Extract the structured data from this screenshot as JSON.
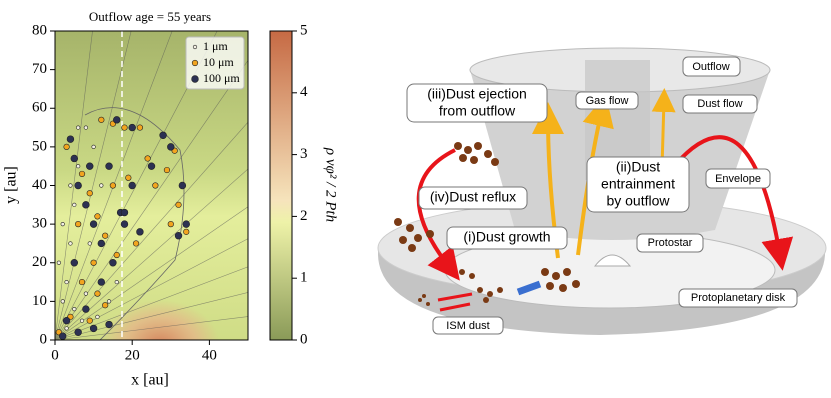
{
  "chart_data": {
    "type": "scatter",
    "title": "Outflow age = 55 years",
    "x_label": "x [au]",
    "y_label": "y [au]",
    "xlim": [
      0,
      50
    ],
    "ylim": [
      0,
      80
    ],
    "xticks": [
      0,
      20,
      40
    ],
    "yticks": [
      0,
      10,
      20,
      30,
      40,
      50,
      60,
      70,
      80
    ],
    "legend": "upper right",
    "series": [
      {
        "name": "1 μm",
        "color": "#f4f1e4",
        "x": [
          2,
          3,
          4,
          5,
          6,
          8,
          10,
          12,
          3,
          5,
          8,
          1,
          2,
          7,
          11,
          14,
          16,
          9,
          4,
          6
        ],
        "values": [
          10,
          15,
          25,
          35,
          45,
          55,
          50,
          40,
          3,
          8,
          12,
          20,
          30,
          5,
          6,
          10,
          15,
          25,
          40,
          55
        ]
      },
      {
        "name": "10 μm",
        "color": "#f2a51f",
        "x": [
          3,
          7,
          9,
          11,
          13,
          16,
          19,
          24,
          31,
          32,
          34,
          12,
          15,
          22,
          4,
          9,
          13,
          1,
          7,
          10,
          26,
          30,
          21,
          6,
          15,
          29,
          18,
          11
        ],
        "values": [
          50,
          43,
          38,
          32,
          27,
          22,
          42,
          47,
          49,
          35,
          28,
          57,
          56,
          55,
          6,
          5,
          9,
          2,
          15,
          20,
          40,
          30,
          25,
          30,
          40,
          44,
          55,
          12
        ]
      },
      {
        "name": "100 μm",
        "color": "#2c3152",
        "x": [
          4,
          5,
          6,
          8,
          10,
          12,
          15,
          17,
          18,
          20,
          25,
          30,
          33,
          34,
          32,
          3,
          6,
          10,
          14,
          2,
          8,
          12,
          20,
          16,
          28,
          5,
          9,
          18,
          14,
          22
        ],
        "values": [
          52,
          47,
          40,
          35,
          30,
          25,
          20,
          33,
          33,
          40,
          45,
          50,
          40,
          30,
          27,
          5,
          2,
          3,
          4,
          1,
          8,
          15,
          55,
          57,
          53,
          20,
          45,
          30,
          45,
          28
        ]
      }
    ],
    "colorbar_label": "ρ vφ² / 2 Pth",
    "colorbar_lim": [
      0,
      5
    ],
    "colorbar_ticks": [
      0,
      1,
      2,
      3,
      4,
      5
    ]
  },
  "diagram": {
    "outflow": "Outflow",
    "gas_flow": "Gas flow",
    "dust_flow": "Dust flow",
    "ejection": [
      "(iii)Dust ejection",
      "from outflow"
    ],
    "entrainment": [
      "(ii)Dust",
      "entrainment",
      "by outflow"
    ],
    "envelope": "Envelope",
    "reflux": "(iv)Dust reflux",
    "growth": "(i)Dust growth",
    "protostar": "Protostar",
    "disk": "Protoplanetary disk",
    "ism": "ISM dust"
  }
}
